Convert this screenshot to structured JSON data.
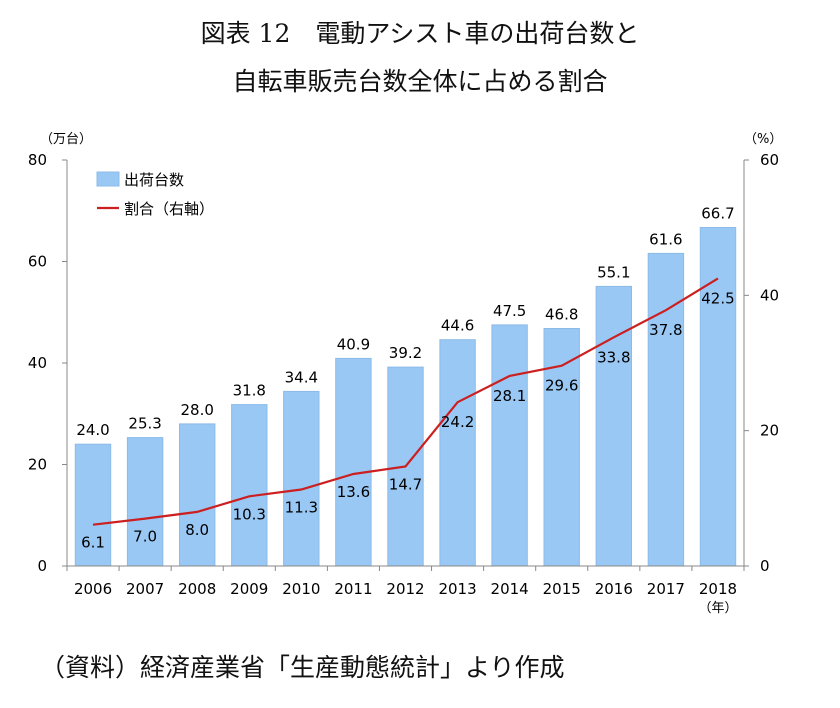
{
  "title_line1": "図表 12　電動アシスト車の出荷台数と",
  "title_line2": "自転車販売台数全体に占める割合",
  "source": "（資料）経済産業省「生産動態統計」より作成",
  "chart_data": {
    "type": "bar",
    "categories": [
      "2006",
      "2007",
      "2008",
      "2009",
      "2010",
      "2011",
      "2012",
      "2013",
      "2014",
      "2015",
      "2016",
      "2017",
      "2018"
    ],
    "x_unit_label": "（年）",
    "series": [
      {
        "name": "出荷台数",
        "kind": "bar",
        "axis": "left",
        "color": "#99c8f5",
        "values": [
          24.0,
          25.3,
          28.0,
          31.8,
          34.4,
          40.9,
          39.2,
          44.6,
          47.5,
          46.8,
          55.1,
          61.6,
          66.7
        ]
      },
      {
        "name": "割合（右軸）",
        "kind": "line",
        "axis": "right",
        "color": "#cc1f1f",
        "values": [
          6.1,
          7.0,
          8.0,
          10.3,
          11.3,
          13.6,
          14.7,
          24.2,
          28.1,
          29.6,
          33.8,
          37.8,
          42.5
        ]
      }
    ],
    "y_left": {
      "unit_label": "（万台）",
      "ylim": [
        0,
        80
      ],
      "ticks": [
        0,
        20,
        40,
        60,
        80
      ]
    },
    "y_right": {
      "unit_label": "（%）",
      "ylim": [
        0,
        60
      ],
      "ticks": [
        0,
        20,
        40,
        60
      ]
    },
    "legend_position": "top-left",
    "grid": false
  }
}
